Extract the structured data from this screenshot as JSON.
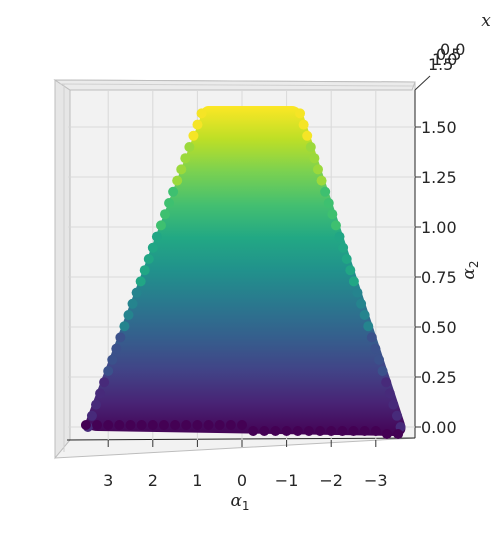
{
  "chart_data": {
    "type": "scatter",
    "view": "top-down 3D scatter (trapezoid-shaped point cloud)",
    "x_axis": {
      "label": "α1",
      "ticks": [
        "3",
        "2",
        "1",
        "0",
        "−1",
        "−2",
        "−3"
      ],
      "tick_values": [
        3,
        2,
        1,
        0,
        -1,
        -2,
        -3
      ],
      "range": [
        3.8,
        -3.8
      ]
    },
    "y_axis": {
      "label": "α2",
      "ticks": [
        "0.00",
        "0.25",
        "0.50",
        "0.75",
        "1.00",
        "1.25",
        "1.50"
      ],
      "tick_values": [
        0.0,
        0.25,
        0.5,
        0.75,
        1.0,
        1.25,
        1.5
      ],
      "range": [
        -0.05,
        1.65
      ]
    },
    "z_axis": {
      "label": "x",
      "ticks": [
        "1.5",
        "1.0",
        "0.5",
        "0.0"
      ]
    },
    "region": {
      "bottom": {
        "alpha2": 0.0,
        "alpha1_from": 3.5,
        "alpha1_to": -3.6
      },
      "top": {
        "alpha2": 1.6,
        "alpha1_from": 0.9,
        "alpha1_to": -1.3
      }
    },
    "colormap": "viridis",
    "color_by": "α2",
    "grid": true
  }
}
